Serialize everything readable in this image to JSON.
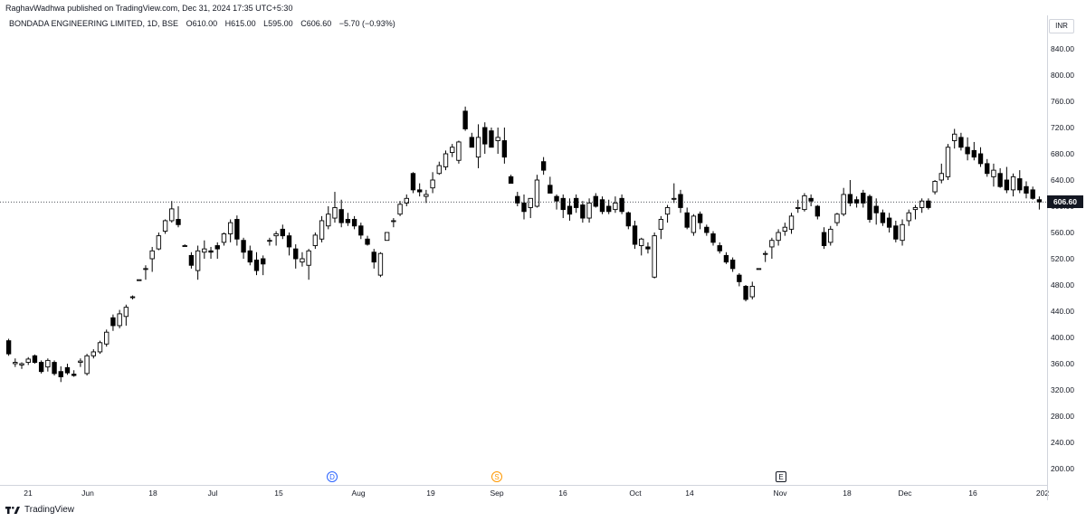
{
  "header": {
    "published_text": "RaghavWadhwa published on TradingView.com, Dec 31, 2024 17:35 UTC+5:30"
  },
  "symbol": {
    "name": "BONDADA ENGINEERING LIMITED, 1D, BSE",
    "open": "O610.00",
    "high": "H615.00",
    "low": "L595.00",
    "close": "C606.60",
    "change": "−5.70 (−0.93%)"
  },
  "price_axis": {
    "currency": "INR",
    "last_price_label": "606.60"
  },
  "events": {
    "dividend": "D",
    "split": "S",
    "earnings": "E"
  },
  "footer": {
    "brand": "TradingView"
  },
  "colors": {
    "up_candle_fill": "#ffffff",
    "down_candle_fill": "#000000",
    "candle_outline": "#000000",
    "axis_text": "#131722",
    "last_price_line": "#131722",
    "dividend": "#2962ff",
    "split": "#ff9800"
  },
  "chart_data": {
    "type": "candlestick",
    "title": "BONDADA ENGINEERING LIMITED, 1D, BSE",
    "y_ticks": [
      200,
      240,
      280,
      320,
      360,
      400,
      440,
      480,
      520,
      560,
      600,
      640,
      680,
      720,
      760,
      800,
      840
    ],
    "y_tick_labels": [
      "200.00",
      "240.00",
      "280.00",
      "320.00",
      "360.00",
      "400.00",
      "440.00",
      "480.00",
      "520.00",
      "560.00",
      "600.00",
      "640.00",
      "680.00",
      "720.00",
      "760.00",
      "800.00",
      "840.00"
    ],
    "ylim": [
      180,
      870
    ],
    "x_tick_labels": [
      "21",
      "Jun",
      "18",
      "Jul",
      "15",
      "Aug",
      "19",
      "Sep",
      "16",
      "Oct",
      "14",
      "Nov",
      "18",
      "Dec",
      "16",
      "202"
    ],
    "last_close": 606.6,
    "grid": false,
    "candles": [
      {
        "o": 395,
        "h": 398,
        "l": 372,
        "c": 375
      },
      {
        "o": 360,
        "h": 368,
        "l": 355,
        "c": 362
      },
      {
        "o": 358,
        "h": 362,
        "l": 352,
        "c": 360
      },
      {
        "o": 362,
        "h": 370,
        "l": 358,
        "c": 367
      },
      {
        "o": 372,
        "h": 374,
        "l": 360,
        "c": 362
      },
      {
        "o": 362,
        "h": 365,
        "l": 345,
        "c": 348
      },
      {
        "o": 355,
        "h": 368,
        "l": 348,
        "c": 365
      },
      {
        "o": 362,
        "h": 365,
        "l": 342,
        "c": 345
      },
      {
        "o": 348,
        "h": 356,
        "l": 332,
        "c": 340
      },
      {
        "o": 354,
        "h": 360,
        "l": 343,
        "c": 346
      },
      {
        "o": 344,
        "h": 350,
        "l": 340,
        "c": 342
      },
      {
        "o": 362,
        "h": 368,
        "l": 355,
        "c": 364
      },
      {
        "o": 345,
        "h": 375,
        "l": 342,
        "c": 372
      },
      {
        "o": 372,
        "h": 382,
        "l": 368,
        "c": 378
      },
      {
        "o": 378,
        "h": 395,
        "l": 375,
        "c": 392
      },
      {
        "o": 390,
        "h": 412,
        "l": 386,
        "c": 408
      },
      {
        "o": 430,
        "h": 435,
        "l": 410,
        "c": 418
      },
      {
        "o": 418,
        "h": 442,
        "l": 414,
        "c": 436
      },
      {
        "o": 432,
        "h": 450,
        "l": 418,
        "c": 446
      },
      {
        "o": 462,
        "h": 464,
        "l": 458,
        "c": 462
      },
      {
        "o": 488,
        "h": 488,
        "l": 488,
        "c": 488
      },
      {
        "o": 505,
        "h": 510,
        "l": 488,
        "c": 505
      },
      {
        "o": 520,
        "h": 538,
        "l": 500,
        "c": 532
      },
      {
        "o": 535,
        "h": 560,
        "l": 533,
        "c": 555
      },
      {
        "o": 562,
        "h": 580,
        "l": 558,
        "c": 578
      },
      {
        "o": 578,
        "h": 608,
        "l": 575,
        "c": 596
      },
      {
        "o": 580,
        "h": 600,
        "l": 568,
        "c": 572
      },
      {
        "o": 540,
        "h": 542,
        "l": 540,
        "c": 540
      },
      {
        "o": 525,
        "h": 530,
        "l": 505,
        "c": 510
      },
      {
        "o": 502,
        "h": 540,
        "l": 488,
        "c": 532
      },
      {
        "o": 530,
        "h": 548,
        "l": 520,
        "c": 535
      },
      {
        "o": 532,
        "h": 538,
        "l": 520,
        "c": 530
      },
      {
        "o": 540,
        "h": 545,
        "l": 520,
        "c": 535
      },
      {
        "o": 545,
        "h": 560,
        "l": 540,
        "c": 558
      },
      {
        "o": 558,
        "h": 580,
        "l": 545,
        "c": 575
      },
      {
        "o": 580,
        "h": 586,
        "l": 540,
        "c": 550
      },
      {
        "o": 548,
        "h": 552,
        "l": 520,
        "c": 530
      },
      {
        "o": 532,
        "h": 540,
        "l": 510,
        "c": 515
      },
      {
        "o": 518,
        "h": 530,
        "l": 495,
        "c": 502
      },
      {
        "o": 520,
        "h": 525,
        "l": 495,
        "c": 512
      },
      {
        "o": 548,
        "h": 552,
        "l": 540,
        "c": 548
      },
      {
        "o": 555,
        "h": 562,
        "l": 540,
        "c": 558
      },
      {
        "o": 565,
        "h": 572,
        "l": 550,
        "c": 555
      },
      {
        "o": 555,
        "h": 560,
        "l": 525,
        "c": 538
      },
      {
        "o": 535,
        "h": 542,
        "l": 505,
        "c": 520
      },
      {
        "o": 515,
        "h": 530,
        "l": 508,
        "c": 520
      },
      {
        "o": 510,
        "h": 535,
        "l": 488,
        "c": 532
      },
      {
        "o": 540,
        "h": 560,
        "l": 535,
        "c": 556
      },
      {
        "o": 550,
        "h": 585,
        "l": 545,
        "c": 578
      },
      {
        "o": 570,
        "h": 600,
        "l": 565,
        "c": 588
      },
      {
        "o": 582,
        "h": 622,
        "l": 575,
        "c": 598
      },
      {
        "o": 595,
        "h": 610,
        "l": 568,
        "c": 575
      },
      {
        "o": 580,
        "h": 590,
        "l": 570,
        "c": 575
      },
      {
        "o": 580,
        "h": 585,
        "l": 565,
        "c": 570
      },
      {
        "o": 570,
        "h": 575,
        "l": 550,
        "c": 556
      },
      {
        "o": 550,
        "h": 555,
        "l": 540,
        "c": 542
      },
      {
        "o": 530,
        "h": 535,
        "l": 505,
        "c": 515
      },
      {
        "o": 495,
        "h": 530,
        "l": 492,
        "c": 528
      },
      {
        "o": 548,
        "h": 555,
        "l": 548,
        "c": 560
      },
      {
        "o": 578,
        "h": 582,
        "l": 568,
        "c": 578
      },
      {
        "o": 588,
        "h": 608,
        "l": 585,
        "c": 603
      },
      {
        "o": 605,
        "h": 618,
        "l": 600,
        "c": 612
      },
      {
        "o": 650,
        "h": 652,
        "l": 620,
        "c": 625
      },
      {
        "o": 625,
        "h": 635,
        "l": 615,
        "c": 622
      },
      {
        "o": 615,
        "h": 625,
        "l": 605,
        "c": 618
      },
      {
        "o": 628,
        "h": 652,
        "l": 620,
        "c": 640
      },
      {
        "o": 650,
        "h": 668,
        "l": 648,
        "c": 662
      },
      {
        "o": 660,
        "h": 685,
        "l": 655,
        "c": 680
      },
      {
        "o": 682,
        "h": 695,
        "l": 675,
        "c": 690
      },
      {
        "o": 670,
        "h": 700,
        "l": 665,
        "c": 698
      },
      {
        "o": 745,
        "h": 752,
        "l": 715,
        "c": 718
      },
      {
        "o": 705,
        "h": 712,
        "l": 690,
        "c": 690
      },
      {
        "o": 675,
        "h": 725,
        "l": 658,
        "c": 705
      },
      {
        "o": 720,
        "h": 728,
        "l": 680,
        "c": 695
      },
      {
        "o": 715,
        "h": 720,
        "l": 690,
        "c": 690
      },
      {
        "o": 700,
        "h": 720,
        "l": 680,
        "c": 705
      },
      {
        "o": 700,
        "h": 720,
        "l": 665,
        "c": 675
      },
      {
        "o": 645,
        "h": 648,
        "l": 635,
        "c": 635
      },
      {
        "o": 615,
        "h": 622,
        "l": 600,
        "c": 605
      },
      {
        "o": 605,
        "h": 618,
        "l": 580,
        "c": 592
      },
      {
        "o": 598,
        "h": 612,
        "l": 582,
        "c": 612
      },
      {
        "o": 600,
        "h": 648,
        "l": 598,
        "c": 640
      },
      {
        "o": 668,
        "h": 675,
        "l": 648,
        "c": 655
      },
      {
        "o": 632,
        "h": 645,
        "l": 620,
        "c": 620
      },
      {
        "o": 615,
        "h": 618,
        "l": 595,
        "c": 608
      },
      {
        "o": 612,
        "h": 618,
        "l": 582,
        "c": 595
      },
      {
        "o": 600,
        "h": 612,
        "l": 578,
        "c": 588
      },
      {
        "o": 612,
        "h": 618,
        "l": 590,
        "c": 598
      },
      {
        "o": 602,
        "h": 608,
        "l": 575,
        "c": 582
      },
      {
        "o": 582,
        "h": 612,
        "l": 575,
        "c": 605
      },
      {
        "o": 615,
        "h": 620,
        "l": 598,
        "c": 600
      },
      {
        "o": 610,
        "h": 615,
        "l": 588,
        "c": 592
      },
      {
        "o": 600,
        "h": 610,
        "l": 588,
        "c": 592
      },
      {
        "o": 595,
        "h": 615,
        "l": 590,
        "c": 605
      },
      {
        "o": 612,
        "h": 618,
        "l": 588,
        "c": 592
      },
      {
        "o": 590,
        "h": 592,
        "l": 565,
        "c": 570
      },
      {
        "o": 570,
        "h": 578,
        "l": 535,
        "c": 542
      },
      {
        "o": 540,
        "h": 552,
        "l": 525,
        "c": 550
      },
      {
        "o": 538,
        "h": 545,
        "l": 528,
        "c": 535
      },
      {
        "o": 492,
        "h": 560,
        "l": 490,
        "c": 555
      },
      {
        "o": 565,
        "h": 585,
        "l": 550,
        "c": 580
      },
      {
        "o": 588,
        "h": 602,
        "l": 575,
        "c": 598
      },
      {
        "o": 612,
        "h": 635,
        "l": 605,
        "c": 612
      },
      {
        "o": 618,
        "h": 625,
        "l": 590,
        "c": 598
      },
      {
        "o": 590,
        "h": 598,
        "l": 565,
        "c": 568
      },
      {
        "o": 560,
        "h": 588,
        "l": 555,
        "c": 585
      },
      {
        "o": 588,
        "h": 592,
        "l": 565,
        "c": 575
      },
      {
        "o": 568,
        "h": 572,
        "l": 555,
        "c": 560
      },
      {
        "o": 558,
        "h": 562,
        "l": 540,
        "c": 545
      },
      {
        "o": 540,
        "h": 545,
        "l": 528,
        "c": 532
      },
      {
        "o": 525,
        "h": 530,
        "l": 512,
        "c": 515
      },
      {
        "o": 518,
        "h": 522,
        "l": 500,
        "c": 505
      },
      {
        "o": 495,
        "h": 498,
        "l": 478,
        "c": 485
      },
      {
        "o": 478,
        "h": 480,
        "l": 455,
        "c": 458
      },
      {
        "o": 462,
        "h": 485,
        "l": 458,
        "c": 478
      },
      {
        "o": 505,
        "h": 505,
        "l": 505,
        "c": 505
      },
      {
        "o": 528,
        "h": 532,
        "l": 515,
        "c": 528
      },
      {
        "o": 538,
        "h": 552,
        "l": 520,
        "c": 548
      },
      {
        "o": 548,
        "h": 565,
        "l": 540,
        "c": 560
      },
      {
        "o": 562,
        "h": 575,
        "l": 555,
        "c": 568
      },
      {
        "o": 565,
        "h": 590,
        "l": 558,
        "c": 585
      },
      {
        "o": 598,
        "h": 610,
        "l": 590,
        "c": 598
      },
      {
        "o": 595,
        "h": 620,
        "l": 592,
        "c": 616
      },
      {
        "o": 612,
        "h": 618,
        "l": 600,
        "c": 608
      },
      {
        "o": 600,
        "h": 602,
        "l": 580,
        "c": 585
      },
      {
        "o": 560,
        "h": 568,
        "l": 535,
        "c": 540
      },
      {
        "o": 545,
        "h": 570,
        "l": 540,
        "c": 565
      },
      {
        "o": 575,
        "h": 590,
        "l": 570,
        "c": 588
      },
      {
        "o": 588,
        "h": 628,
        "l": 585,
        "c": 618
      },
      {
        "o": 618,
        "h": 640,
        "l": 600,
        "c": 605
      },
      {
        "o": 610,
        "h": 615,
        "l": 598,
        "c": 605
      },
      {
        "o": 620,
        "h": 625,
        "l": 598,
        "c": 605
      },
      {
        "o": 615,
        "h": 618,
        "l": 575,
        "c": 580
      },
      {
        "o": 600,
        "h": 612,
        "l": 572,
        "c": 590
      },
      {
        "o": 590,
        "h": 595,
        "l": 570,
        "c": 575
      },
      {
        "o": 582,
        "h": 590,
        "l": 560,
        "c": 568
      },
      {
        "o": 570,
        "h": 578,
        "l": 545,
        "c": 550
      },
      {
        "o": 548,
        "h": 580,
        "l": 540,
        "c": 572
      },
      {
        "o": 578,
        "h": 595,
        "l": 570,
        "c": 590
      },
      {
        "o": 595,
        "h": 602,
        "l": 580,
        "c": 598
      },
      {
        "o": 598,
        "h": 612,
        "l": 590,
        "c": 608
      },
      {
        "o": 608,
        "h": 612,
        "l": 595,
        "c": 598
      },
      {
        "o": 622,
        "h": 640,
        "l": 618,
        "c": 638
      },
      {
        "o": 640,
        "h": 665,
        "l": 635,
        "c": 650
      },
      {
        "o": 645,
        "h": 695,
        "l": 640,
        "c": 690
      },
      {
        "o": 700,
        "h": 718,
        "l": 688,
        "c": 710
      },
      {
        "o": 705,
        "h": 712,
        "l": 685,
        "c": 690
      },
      {
        "o": 690,
        "h": 705,
        "l": 670,
        "c": 680
      },
      {
        "o": 685,
        "h": 698,
        "l": 670,
        "c": 675
      },
      {
        "o": 680,
        "h": 690,
        "l": 660,
        "c": 665
      },
      {
        "o": 665,
        "h": 672,
        "l": 645,
        "c": 650
      },
      {
        "o": 645,
        "h": 665,
        "l": 630,
        "c": 655
      },
      {
        "o": 650,
        "h": 658,
        "l": 628,
        "c": 630
      },
      {
        "o": 640,
        "h": 660,
        "l": 620,
        "c": 625
      },
      {
        "o": 625,
        "h": 650,
        "l": 615,
        "c": 645
      },
      {
        "o": 642,
        "h": 655,
        "l": 620,
        "c": 625
      },
      {
        "o": 630,
        "h": 638,
        "l": 612,
        "c": 620
      },
      {
        "o": 625,
        "h": 630,
        "l": 610,
        "c": 612
      },
      {
        "o": 610,
        "h": 615,
        "l": 595,
        "c": 606.6
      }
    ]
  }
}
